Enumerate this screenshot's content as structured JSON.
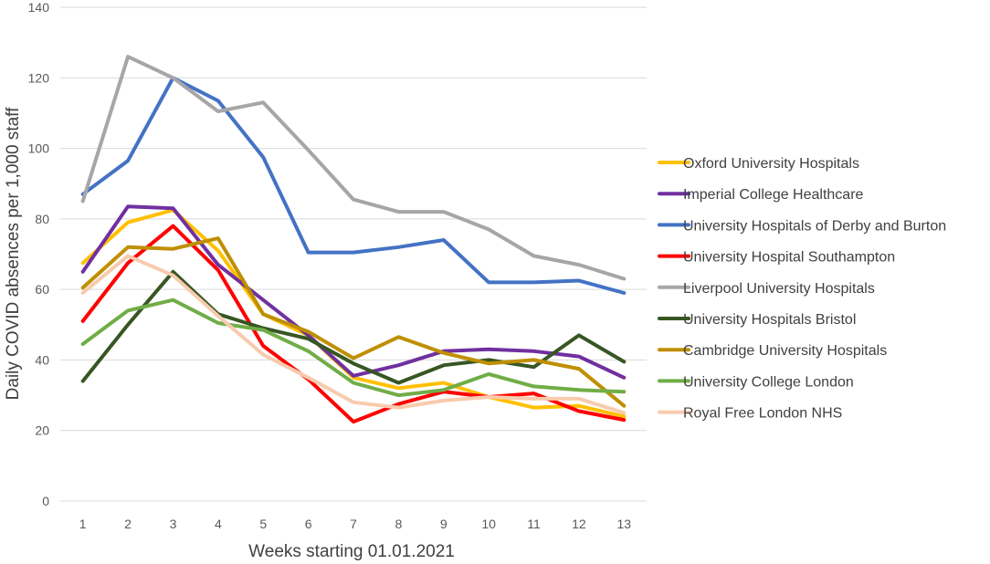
{
  "chart_data": {
    "type": "line",
    "title": "",
    "xlabel": "Weeks starting 01.01.2021",
    "ylabel": "Daily COVID absences per 1,000 staff",
    "categories": [
      "1",
      "2",
      "3",
      "4",
      "5",
      "6",
      "7",
      "8",
      "9",
      "10",
      "11",
      "12",
      "13"
    ],
    "ylim": [
      0,
      140
    ],
    "yticks": [
      0,
      20,
      40,
      60,
      80,
      100,
      120,
      140
    ],
    "grid": true,
    "legend_position": "right",
    "series": [
      {
        "name": "Oxford University Hospitals",
        "color": "#ffc000",
        "values": [
          67.5,
          79,
          82.5,
          71,
          53,
          47,
          35,
          32,
          33.5,
          29.5,
          26.5,
          27,
          24
        ]
      },
      {
        "name": "Imperial College Healthcare",
        "color": "#7030a0",
        "values": [
          65,
          83.5,
          83,
          67,
          57,
          47,
          35.5,
          38.5,
          42.5,
          43,
          42.5,
          41,
          35
        ]
      },
      {
        "name": "University Hospitals of Derby and Burton",
        "color": "#4472c4",
        "values": [
          87,
          96.5,
          120,
          113.5,
          97.5,
          70.5,
          70.5,
          72,
          74,
          62,
          62,
          62.5,
          59
        ]
      },
      {
        "name": "University Hospital Southampton",
        "color": "#ff0000",
        "values": [
          51,
          67.5,
          78,
          65.5,
          44,
          34.5,
          22.5,
          27.5,
          31,
          29.5,
          30.5,
          25.5,
          23
        ]
      },
      {
        "name": "Liverpool University Hospitals",
        "color": "#a6a6a6",
        "values": [
          85,
          126,
          120,
          110.5,
          113,
          99.5,
          85.5,
          82,
          82,
          77,
          69.5,
          67,
          63
        ]
      },
      {
        "name": "University Hospitals Bristol",
        "color": "#375623",
        "values": [
          34,
          50,
          65,
          53,
          49,
          46,
          39,
          33.5,
          38.5,
          40,
          38,
          47,
          39.5
        ]
      },
      {
        "name": "Cambridge University Hospitals",
        "color": "#bf8f00",
        "values": [
          60.5,
          72,
          71.5,
          74.5,
          53,
          48,
          40.5,
          46.5,
          42,
          39,
          40,
          37.5,
          27
        ]
      },
      {
        "name": "University College London",
        "color": "#70ad47",
        "values": [
          44.5,
          54,
          57,
          50.5,
          48.5,
          42.5,
          33.5,
          30,
          31.5,
          36,
          32.5,
          31.5,
          31
        ]
      },
      {
        "name": "Royal Free London NHS",
        "color": "#f8cbad",
        "values": [
          59,
          69.5,
          64,
          52.5,
          41.5,
          35,
          28,
          26.5,
          28.5,
          29.5,
          29,
          29,
          25
        ]
      }
    ]
  }
}
